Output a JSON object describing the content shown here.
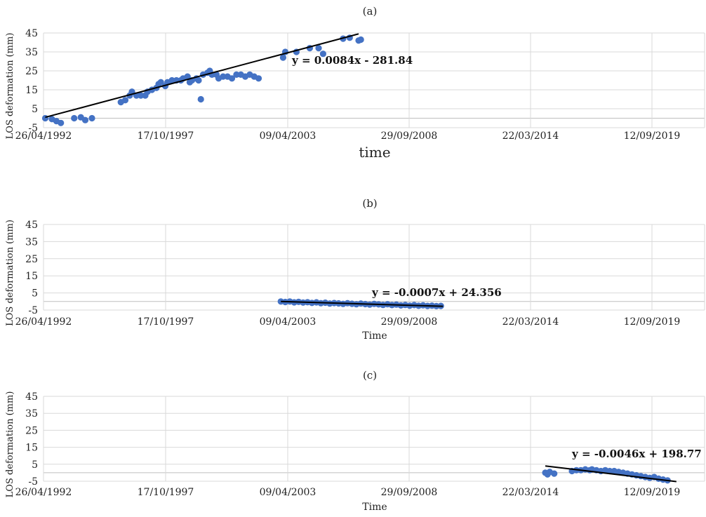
{
  "chart_data": [
    {
      "type": "scatter",
      "title": "(a)",
      "xlabel": "time",
      "ylabel": "LOS deformation (mm)",
      "ylim": [
        -5,
        45
      ],
      "yticks": [
        "45",
        "35",
        "25",
        "15",
        "5",
        "-5"
      ],
      "xticks": [
        "26/04/1992",
        "17/10/1997",
        "09/04/2003",
        "29/09/2008",
        "22/03/2014",
        "12/09/2019"
      ],
      "trendline": {
        "equation": "y = 0.0084x - 281.84",
        "from": [
          1992.4,
          0.5
        ],
        "to": [
          2006.5,
          44.5
        ]
      },
      "points": [
        [
          1992.4,
          0
        ],
        [
          1992.7,
          -0.5
        ],
        [
          1992.9,
          -1.5
        ],
        [
          1993.1,
          -2.5
        ],
        [
          1993.7,
          0
        ],
        [
          1994.0,
          0.5
        ],
        [
          1994.2,
          -1
        ],
        [
          1994.5,
          0
        ],
        [
          1995.8,
          8.5
        ],
        [
          1996.0,
          9.5
        ],
        [
          1996.2,
          12
        ],
        [
          1996.3,
          14
        ],
        [
          1996.5,
          12
        ],
        [
          1996.7,
          12
        ],
        [
          1996.9,
          12
        ],
        [
          1997.0,
          14
        ],
        [
          1997.2,
          15
        ],
        [
          1997.4,
          16
        ],
        [
          1997.5,
          18
        ],
        [
          1997.6,
          19
        ],
        [
          1997.8,
          17
        ],
        [
          1997.9,
          19
        ],
        [
          1998.1,
          20
        ],
        [
          1998.3,
          20
        ],
        [
          1998.5,
          20
        ],
        [
          1998.6,
          21
        ],
        [
          1998.8,
          22
        ],
        [
          1998.9,
          19
        ],
        [
          1999.0,
          20
        ],
        [
          1999.2,
          21
        ],
        [
          1999.3,
          20
        ],
        [
          1999.4,
          10
        ],
        [
          1999.5,
          23
        ],
        [
          1999.7,
          24
        ],
        [
          1999.8,
          25
        ],
        [
          1999.9,
          23
        ],
        [
          2000.1,
          23
        ],
        [
          2000.2,
          21
        ],
        [
          2000.4,
          22
        ],
        [
          2000.6,
          22
        ],
        [
          2000.8,
          21
        ],
        [
          2001.0,
          23
        ],
        [
          2001.2,
          23
        ],
        [
          2001.4,
          22
        ],
        [
          2001.6,
          23
        ],
        [
          2001.8,
          22
        ],
        [
          2002.0,
          21
        ],
        [
          2003.1,
          32
        ],
        [
          2003.2,
          35
        ],
        [
          2003.7,
          35
        ],
        [
          2004.3,
          37
        ],
        [
          2004.7,
          37
        ],
        [
          2004.9,
          34
        ],
        [
          2005.8,
          42
        ],
        [
          2006.1,
          42.5
        ],
        [
          2006.5,
          41
        ],
        [
          2006.6,
          41.5
        ]
      ]
    },
    {
      "type": "scatter",
      "title": "(b)",
      "xlabel": "Time",
      "ylabel": "LOS deformation (mm)",
      "ylim": [
        -5,
        45
      ],
      "yticks": [
        "45",
        "35",
        "25",
        "15",
        "5",
        "-5"
      ],
      "xticks": [
        "26/04/1992",
        "17/10/1997",
        "09/04/2003",
        "29/09/2008",
        "22/03/2014",
        "12/09/2019"
      ],
      "trendline": {
        "equation": "y = -0.0007x + 24.356",
        "from": [
          2003.0,
          0
        ],
        "to": [
          2010.3,
          -2.8
        ]
      },
      "points": [
        [
          2003.0,
          0
        ],
        [
          2003.2,
          -0.3
        ],
        [
          2003.4,
          0
        ],
        [
          2003.6,
          -0.5
        ],
        [
          2003.8,
          -0.2
        ],
        [
          2004.0,
          -0.6
        ],
        [
          2004.2,
          -0.4
        ],
        [
          2004.4,
          -0.8
        ],
        [
          2004.6,
          -0.5
        ],
        [
          2004.8,
          -1.0
        ],
        [
          2005.0,
          -0.7
        ],
        [
          2005.2,
          -1.2
        ],
        [
          2005.4,
          -0.9
        ],
        [
          2005.6,
          -1.1
        ],
        [
          2005.8,
          -1.4
        ],
        [
          2006.0,
          -1.0
        ],
        [
          2006.2,
          -1.3
        ],
        [
          2006.4,
          -1.6
        ],
        [
          2006.6,
          -1.2
        ],
        [
          2006.8,
          -1.5
        ],
        [
          2007.0,
          -1.8
        ],
        [
          2007.2,
          -1.4
        ],
        [
          2007.4,
          -1.7
        ],
        [
          2007.6,
          -2.0
        ],
        [
          2007.8,
          -1.6
        ],
        [
          2008.0,
          -2.1
        ],
        [
          2008.2,
          -1.8
        ],
        [
          2008.4,
          -2.3
        ],
        [
          2008.6,
          -2.0
        ],
        [
          2008.8,
          -2.4
        ],
        [
          2009.0,
          -2.1
        ],
        [
          2009.2,
          -2.5
        ],
        [
          2009.4,
          -2.2
        ],
        [
          2009.6,
          -2.6
        ],
        [
          2009.8,
          -2.4
        ],
        [
          2010.0,
          -2.7
        ],
        [
          2010.2,
          -2.6
        ]
      ]
    },
    {
      "type": "scatter",
      "title": "(c)",
      "xlabel": "Time",
      "ylabel": "LOS deformation (mm)",
      "ylim": [
        -5,
        45
      ],
      "yticks": [
        "45",
        "35",
        "25",
        "15",
        "5",
        "-5"
      ],
      "xticks": [
        "26/04/1992",
        "17/10/1997",
        "09/04/2003",
        "29/09/2008",
        "22/03/2014",
        "12/09/2019"
      ],
      "trendline": {
        "equation": "y = -0.0046x + 198.77",
        "from": [
          2014.9,
          4.0
        ],
        "to": [
          2020.8,
          -5.2
        ]
      },
      "points": [
        [
          2014.9,
          0
        ],
        [
          2015.0,
          -1
        ],
        [
          2015.1,
          0.5
        ],
        [
          2015.3,
          -0.5
        ],
        [
          2016.1,
          1
        ],
        [
          2016.3,
          1.5
        ],
        [
          2016.5,
          1.5
        ],
        [
          2016.7,
          2
        ],
        [
          2016.9,
          1.5
        ],
        [
          2017.0,
          2
        ],
        [
          2017.2,
          1.5
        ],
        [
          2017.4,
          1
        ],
        [
          2017.6,
          1.5
        ],
        [
          2017.8,
          1
        ],
        [
          2018.0,
          1
        ],
        [
          2018.2,
          0.5
        ],
        [
          2018.4,
          0
        ],
        [
          2018.6,
          -0.5
        ],
        [
          2018.8,
          -1
        ],
        [
          2019.0,
          -1.5
        ],
        [
          2019.2,
          -2
        ],
        [
          2019.4,
          -2.5
        ],
        [
          2019.6,
          -3
        ],
        [
          2019.8,
          -2.5
        ],
        [
          2020.0,
          -3.5
        ],
        [
          2020.2,
          -4
        ],
        [
          2020.4,
          -4.5
        ]
      ]
    }
  ]
}
